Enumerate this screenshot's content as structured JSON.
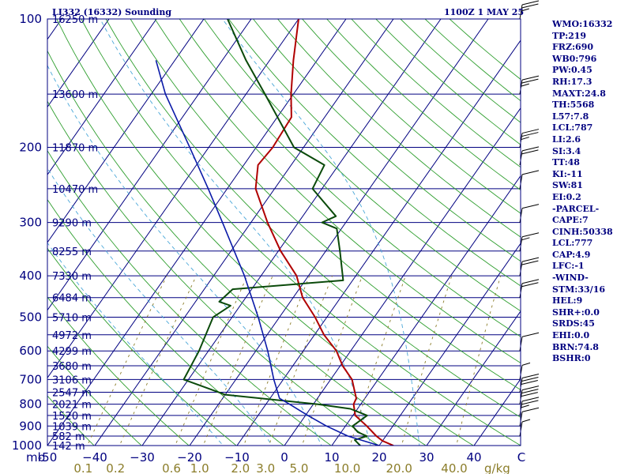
{
  "header": {
    "station_title": "LI332 (16332) Sounding",
    "valid_time": "1100Z  1 MAY 25"
  },
  "indices": [
    "WMO:16332",
    "TP:219",
    "FRZ:690",
    "WB0:796",
    "PW:0.45",
    "RH:17.3",
    "MAXT:24.8",
    "TH:5568",
    "L57:7.8",
    "LCL:787",
    "LI:2.6",
    "SI:3.4",
    "TT:48",
    "KI:-11",
    "SW:81",
    "EI:0.2",
    "-PARCEL-",
    "CAPE:7",
    "CINH:50338",
    "LCL:777",
    "CAP:4.9",
    "LFC:-1",
    "-WIND-",
    "STM:33/16",
    "HEL:9",
    "SHR+:0.0",
    "SRDS:45",
    "EHI:0.0",
    "BRN:74.8",
    "BSHR:0"
  ],
  "pressure_axis_label": "mb",
  "temperature_axis_unit": "C",
  "mixing_ratio_unit": "g/kg",
  "colors": {
    "axis_text": "#000080",
    "isobar": "#000080",
    "isotherm": "#000080",
    "dry_adiabat": "#2e9e2e",
    "moist_adiabat": "#4aa7d8",
    "mixing_ratio": "#8b7d2a",
    "temperature": "#b00000",
    "dewpoint": "#0a4a0a",
    "parcel": "#0a1aa8",
    "wind_barb": "#000000"
  },
  "chart_data": {
    "type": "skew-t log-p sounding",
    "title": "LI332 (16332) Sounding",
    "valid_time": "1100Z  1 MAY 25",
    "pressure_range_mb": [
      1000,
      100
    ],
    "temperature_range_c": [
      -50,
      50
    ],
    "pressure_ticks_mb": [
      100,
      200,
      300,
      400,
      500,
      600,
      700,
      800,
      900,
      1000
    ],
    "pressure_tick_labels": [
      "100",
      "200",
      "300",
      "400",
      "500",
      "600",
      "700",
      "800",
      "900",
      "1000"
    ],
    "temperature_ticks": [
      {
        "label": "-50",
        "value": -50
      },
      {
        "label": "−40",
        "value": -40
      },
      {
        "label": "−30",
        "value": -30
      },
      {
        "label": "−20",
        "value": -20
      },
      {
        "label": "−10",
        "value": -10
      },
      {
        "label": "0",
        "value": 0
      },
      {
        "label": "10",
        "value": 10
      },
      {
        "label": "20",
        "value": 20
      },
      {
        "label": "30",
        "value": 30
      },
      {
        "label": "40",
        "value": 40
      },
      {
        "label": "C",
        "value": 50
      }
    ],
    "mixing_ratio_labels": [
      {
        "label": "0.1",
        "value": 0.1
      },
      {
        "label": "0.2",
        "value": 0.2
      },
      {
        "label": "0.6",
        "value": 0.6
      },
      {
        "label": "1.0",
        "value": 1.0
      },
      {
        "label": "2.0",
        "value": 2.0
      },
      {
        "label": "3.0",
        "value": 3.0
      },
      {
        "label": "5.0",
        "value": 5.0
      },
      {
        "label": "10.0",
        "value": 10.0
      },
      {
        "label": "20.0",
        "value": 20.0
      },
      {
        "label": "40.0",
        "value": 40.0
      }
    ],
    "height_levels": [
      {
        "p": 100,
        "label": "16250 m"
      },
      {
        "p": 150,
        "label": "13600 m"
      },
      {
        "p": 200,
        "label": "11870 m"
      },
      {
        "p": 250,
        "label": "10470 m"
      },
      {
        "p": 300,
        "label": "9290 m"
      },
      {
        "p": 350,
        "label": "8255 m"
      },
      {
        "p": 400,
        "label": "7330 m"
      },
      {
        "p": 450,
        "label": "6484 m"
      },
      {
        "p": 500,
        "label": "5710 m"
      },
      {
        "p": 550,
        "label": "4972 m"
      },
      {
        "p": 600,
        "label": "4299 m"
      },
      {
        "p": 650,
        "label": "3680 m"
      },
      {
        "p": 700,
        "label": "3106 m"
      },
      {
        "p": 750,
        "label": "2547 m"
      },
      {
        "p": 800,
        "label": "2021 m"
      },
      {
        "p": 850,
        "label": "1520 m"
      },
      {
        "p": 900,
        "label": "1039 m"
      },
      {
        "p": 950,
        "label": "582 m"
      },
      {
        "p": 1000,
        "label": "142 m"
      }
    ],
    "series": [
      {
        "name": "temperature",
        "points": [
          [
            1000,
            23.0
          ],
          [
            975,
            20.0
          ],
          [
            950,
            18.0
          ],
          [
            900,
            14.5
          ],
          [
            850,
            10.5
          ],
          [
            800,
            8.5
          ],
          [
            775,
            8.2
          ],
          [
            750,
            7.0
          ],
          [
            700,
            4.5
          ],
          [
            650,
            0.5
          ],
          [
            600,
            -3.0
          ],
          [
            550,
            -8.0
          ],
          [
            500,
            -12.5
          ],
          [
            450,
            -18.0
          ],
          [
            400,
            -22.5
          ],
          [
            350,
            -29.5
          ],
          [
            300,
            -36.5
          ],
          [
            250,
            -44.0
          ],
          [
            220,
            -47.0
          ],
          [
            200,
            -46.5
          ],
          [
            170,
            -47.0
          ],
          [
            150,
            -50.5
          ],
          [
            125,
            -55.0
          ],
          [
            100,
            -60.0
          ]
        ]
      },
      {
        "name": "dewpoint",
        "points": [
          [
            1000,
            16.0
          ],
          [
            970,
            14.0
          ],
          [
            950,
            16.0
          ],
          [
            930,
            13.5
          ],
          [
            900,
            11.5
          ],
          [
            850,
            13.0
          ],
          [
            820,
            8.5
          ],
          [
            800,
            1.0
          ],
          [
            760,
            -20.0
          ],
          [
            700,
            -31.0
          ],
          [
            600,
            -32.0
          ],
          [
            500,
            -34.0
          ],
          [
            470,
            -32.0
          ],
          [
            460,
            -35.0
          ],
          [
            430,
            -34.0
          ],
          [
            410,
            -12.0
          ],
          [
            350,
            -17.0
          ],
          [
            310,
            -21.0
          ],
          [
            300,
            -25.0
          ],
          [
            290,
            -23.0
          ],
          [
            250,
            -32.0
          ],
          [
            220,
            -33.0
          ],
          [
            200,
            -42.0
          ],
          [
            150,
            -56.0
          ],
          [
            125,
            -65.0
          ],
          [
            100,
            -75.0
          ]
        ]
      },
      {
        "name": "parcel",
        "points": [
          [
            1000,
            20.0
          ],
          [
            950,
            12.0
          ],
          [
            900,
            6.0
          ],
          [
            850,
            0.5
          ],
          [
            800,
            -5.0
          ],
          [
            775,
            -8.0
          ],
          [
            700,
            -12.0
          ],
          [
            600,
            -17.5
          ],
          [
            500,
            -24.5
          ],
          [
            400,
            -33.5
          ],
          [
            300,
            -46.0
          ],
          [
            250,
            -54.0
          ],
          [
            200,
            -64.0
          ],
          [
            150,
            -77.0
          ],
          [
            125,
            -84.0
          ]
        ]
      }
    ],
    "wind_barbs": [
      {
        "p": 100,
        "speed_kt": 25
      },
      {
        "p": 150,
        "speed_kt": 25
      },
      {
        "p": 200,
        "speed_kt": 25
      },
      {
        "p": 220,
        "speed_kt": 20
      },
      {
        "p": 250,
        "speed_kt": 10
      },
      {
        "p": 300,
        "speed_kt": 10
      },
      {
        "p": 350,
        "speed_kt": 15
      },
      {
        "p": 400,
        "speed_kt": 20
      },
      {
        "p": 450,
        "speed_kt": 20
      },
      {
        "p": 600,
        "speed_kt": 10
      },
      {
        "p": 700,
        "speed_kt": 5
      },
      {
        "p": 750,
        "speed_kt": 30
      },
      {
        "p": 800,
        "speed_kt": 30
      },
      {
        "p": 850,
        "speed_kt": 25
      },
      {
        "p": 900,
        "speed_kt": 10
      },
      {
        "p": 950,
        "speed_kt": 5
      }
    ]
  }
}
